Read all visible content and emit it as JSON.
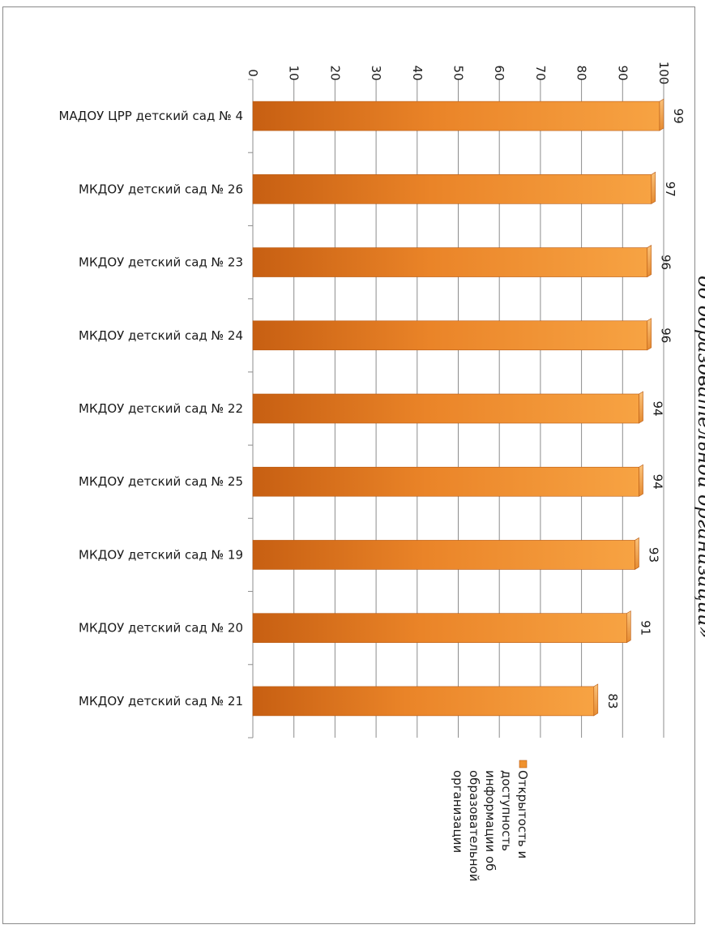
{
  "chart_data": {
    "type": "bar",
    "orientation": "horizontal",
    "title_fragment": "об образовательной организации»",
    "categories": [
      "МАДОУ ЦРР детский сад № 4",
      "МКДОУ детский сад № 26",
      "МКДОУ детский сад № 23",
      "МКДОУ детский сад № 24",
      "МКДОУ детский сад № 22",
      "МКДОУ детский сад № 25",
      "МКДОУ детский сад № 19",
      "МКДОУ детский сад № 20",
      "МКДОУ детский сад № 21"
    ],
    "series": [
      {
        "name": "Открытость и доступность информации об образовательной организации",
        "legend_lines": [
          "Открытость и",
          "доступность",
          "информации об",
          "образовательной",
          "организации"
        ],
        "values": [
          99,
          97,
          96,
          96,
          94,
          94,
          93,
          91,
          83
        ],
        "color": "#f0922e"
      }
    ],
    "xlim": [
      0,
      100
    ],
    "ticks": [
      "0",
      "10",
      "20",
      "30",
      "40",
      "50",
      "60",
      "70",
      "80",
      "90",
      "100"
    ],
    "grid": true,
    "legend_position": "right",
    "data_labels": true
  }
}
